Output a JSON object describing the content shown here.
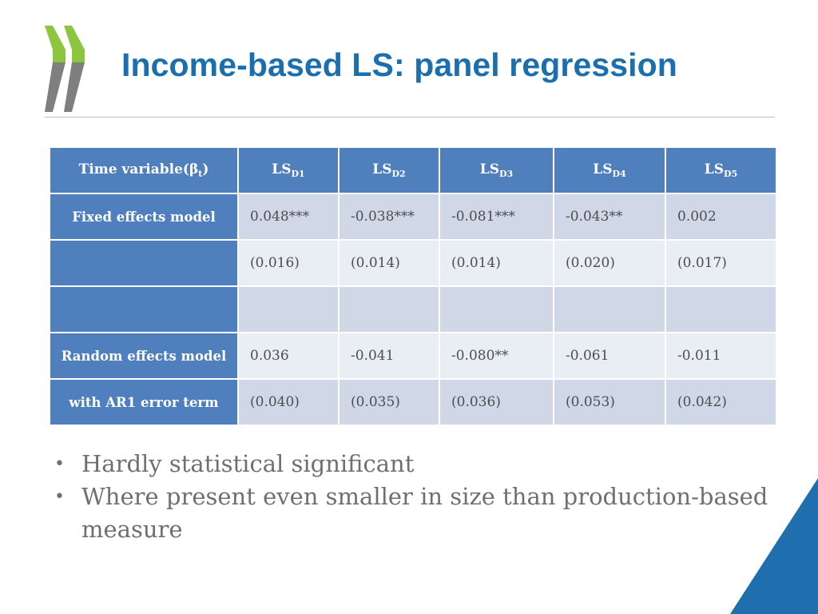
{
  "colors": {
    "title": "#1b6fae",
    "header_fill": "#4f80bd",
    "row_fill_dark": "#d0d8e8",
    "row_fill_light": "#e9edf4",
    "logo_green": "#8cc63f",
    "logo_gray": "#7f7f7f",
    "corner_blue": "#1f6fae"
  },
  "slide": {
    "title": "Income-based LS: panel regression"
  },
  "table": {
    "header": {
      "col0": "Time variable(β",
      "col0_sub": "t",
      "col0_close": ")",
      "cols": [
        {
          "main": "LS",
          "sub": "D1"
        },
        {
          "main": "LS",
          "sub": "D2"
        },
        {
          "main": "LS",
          "sub": "D3"
        },
        {
          "main": "LS",
          "sub": "D4"
        },
        {
          "main": "LS",
          "sub": "D5"
        }
      ]
    },
    "rows": [
      {
        "label": "Fixed effects model",
        "cells": [
          "0.048***",
          "-0.038***",
          "-0.081***",
          "-0.043**",
          "0.002"
        ]
      },
      {
        "label": "",
        "cells": [
          "(0.016)",
          "(0.014)",
          "(0.014)",
          "(0.020)",
          "(0.017)"
        ]
      },
      {
        "label": "",
        "cells": [
          "",
          "",
          "",
          "",
          ""
        ]
      },
      {
        "label": "Random effects model",
        "cells": [
          "0.036",
          "-0.041",
          "-0.080**",
          "-0.061",
          "-0.011"
        ]
      },
      {
        "label": "with AR1 error term",
        "cells": [
          "(0.040)",
          "(0.035)",
          "(0.036)",
          "(0.053)",
          "(0.042)"
        ]
      }
    ]
  },
  "bullets": [
    "Hardly statistical significant",
    "Where present even smaller in size than production-based measure"
  ],
  "bullet_marker": "•"
}
